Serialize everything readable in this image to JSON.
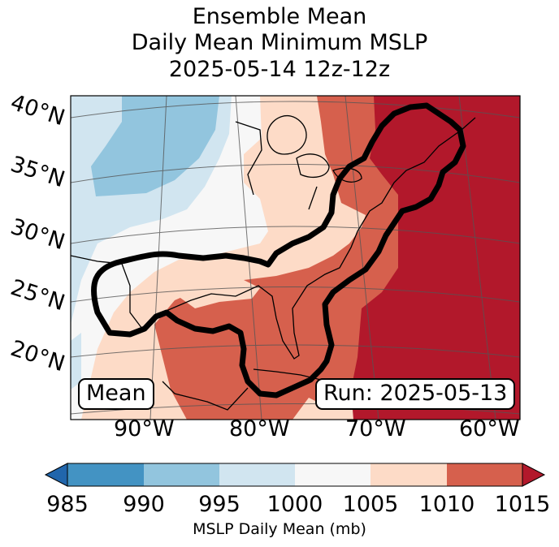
{
  "title": {
    "line1": "Ensemble Mean",
    "line2": "Daily Mean Minimum MSLP",
    "line3": "2025-05-14 12z-12z"
  },
  "map": {
    "region": "Eastern United States and Gulf of Mexico",
    "lat_labels": [
      "40°N",
      "35°N",
      "30°N",
      "25°N",
      "20°N"
    ],
    "lon_labels": [
      "90°W",
      "80°W",
      "70°W",
      "60°W"
    ],
    "mean_box": "Mean",
    "run_box": "Run: 2025-05-13"
  },
  "legend": {
    "ticks": [
      "985",
      "990",
      "995",
      "1000",
      "1005",
      "1010",
      "1015"
    ],
    "label": "MSLP Daily Mean (mb)",
    "colors": [
      "#2166ac",
      "#4393c3",
      "#92c5de",
      "#d1e5f0",
      "#f7f7f7",
      "#fddbc7",
      "#d6604d",
      "#b2182b"
    ]
  }
}
